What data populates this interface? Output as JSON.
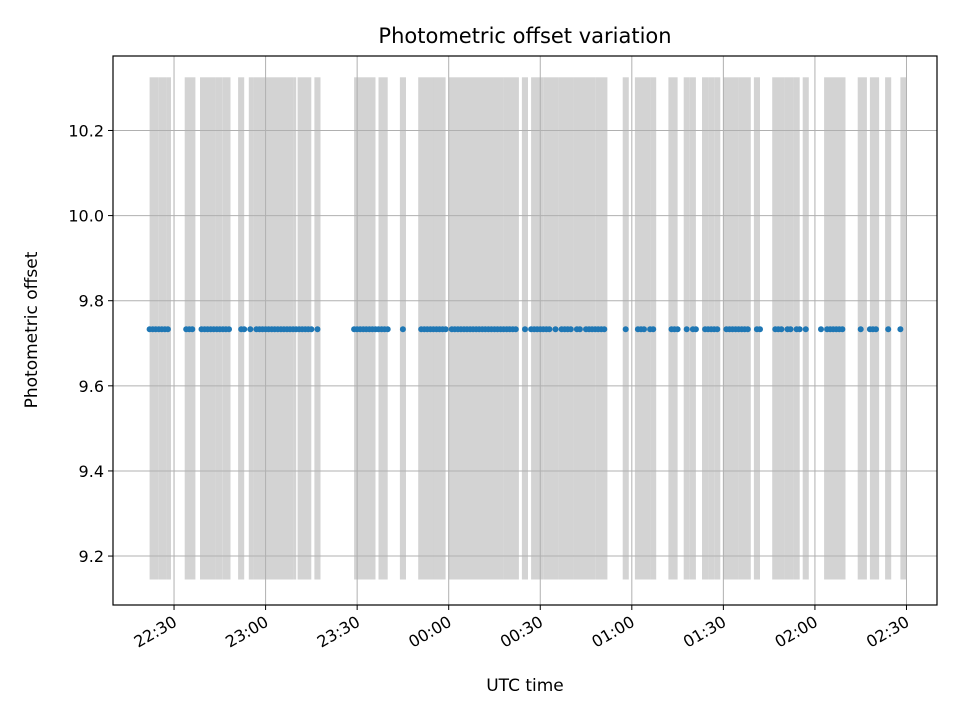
{
  "chart_data": {
    "type": "scatter",
    "title": "Photometric offset variation",
    "xlabel": "UTC time",
    "ylabel": "Photometric offset",
    "xlim": [
      "22:10",
      "02:40"
    ],
    "ylim": [
      9.085,
      10.375
    ],
    "grid": true,
    "x_ticks": [
      "22:30",
      "23:00",
      "23:30",
      "00:00",
      "00:30",
      "01:00",
      "01:30",
      "02:00",
      "02:30"
    ],
    "y_ticks": [
      "9.2",
      "9.4",
      "9.6",
      "9.8",
      "10.0",
      "10.2"
    ],
    "x_ticks_rotated": true,
    "marker_color": "#1f77b4",
    "band_color": "#d3d3d3",
    "bands": {
      "ymin": 9.145,
      "ymax": 10.325,
      "intervals": [
        [
          "22:22",
          "22:25"
        ],
        [
          "22:25",
          "22:27:30"
        ],
        [
          "22:27:30",
          "22:29"
        ],
        [
          "22:33:30",
          "22:37"
        ],
        [
          "22:38:30",
          "22:43:30"
        ],
        [
          "22:43:30",
          "22:46"
        ],
        [
          "22:46",
          "22:48:30"
        ],
        [
          "22:51",
          "22:53"
        ],
        [
          "22:54:30",
          "22:56"
        ],
        [
          "22:56",
          "23:09"
        ],
        [
          "23:09",
          "23:10"
        ],
        [
          "23:10.5",
          "23:15"
        ],
        [
          "23:16",
          "23:18"
        ],
        [
          "23:29",
          "23:36"
        ],
        [
          "23:37",
          "23:40"
        ],
        [
          "23:44",
          "23:46"
        ],
        [
          "23:50",
          "23:55"
        ],
        [
          "23:55",
          "23:57"
        ],
        [
          "23:57",
          "23:59"
        ],
        [
          "00:00",
          "00:05"
        ],
        [
          "00:05",
          "00:18"
        ],
        [
          "00:18",
          "00:23"
        ],
        [
          "00:24",
          "00:26"
        ],
        [
          "00:27",
          "00:31"
        ],
        [
          "00:31",
          "00:34"
        ],
        [
          "00:34",
          "00:36"
        ],
        [
          "00:36",
          "00:41"
        ],
        [
          "00:41",
          "00:44"
        ],
        [
          "00:44",
          "00:48"
        ],
        [
          "00:48",
          "00:52"
        ],
        [
          "00:57",
          "00:59"
        ],
        [
          "01:01",
          "01:03"
        ],
        [
          "01:03",
          "01:06"
        ],
        [
          "01:06",
          "01:08"
        ],
        [
          "01:12",
          "01:15"
        ],
        [
          "01:17",
          "01:19"
        ],
        [
          "01:19",
          "01:21"
        ],
        [
          "01:23",
          "01:25"
        ],
        [
          "01:25",
          "01:27"
        ],
        [
          "01:27",
          "01:29"
        ],
        [
          "01:30",
          "01:35"
        ],
        [
          "01:35",
          "01:39"
        ],
        [
          "01:40",
          "01:42"
        ],
        [
          "01:46",
          "01:50"
        ],
        [
          "01:50",
          "01:53"
        ],
        [
          "01:53",
          "01:55"
        ],
        [
          "01:56",
          "01:58"
        ],
        [
          "02:03",
          "02:10"
        ],
        [
          "02:14",
          "02:17"
        ],
        [
          "02:18",
          "02:21"
        ],
        [
          "02:23",
          "02:25"
        ],
        [
          "02:28",
          "02:30"
        ]
      ]
    },
    "series": [
      {
        "y": 9.733,
        "x": [
          "22:22",
          "22:23",
          "22:24",
          "22:25",
          "22:26",
          "22:27",
          "22:28",
          "22:34",
          "22:35",
          "22:36",
          "22:39",
          "22:40",
          "22:41",
          "22:42",
          "22:43",
          "22:44",
          "22:45",
          "22:46",
          "22:47",
          "22:48",
          "22:52",
          "22:53",
          "22:55",
          "22:57",
          "22:58",
          "22:59",
          "23:00",
          "23:01",
          "23:02",
          "23:03",
          "23:04",
          "23:05",
          "23:06",
          "23:07",
          "23:08",
          "23:09",
          "23:10",
          "23:11",
          "23:12",
          "23:13",
          "23:14",
          "23:15",
          "23:17",
          "23:29",
          "23:30",
          "23:31",
          "23:32",
          "23:33",
          "23:34",
          "23:35",
          "23:36",
          "23:37",
          "23:38",
          "23:39",
          "23:40",
          "23:45",
          "23:51",
          "23:52",
          "23:53",
          "23:54",
          "23:55",
          "23:56",
          "23:57",
          "23:58",
          "23:59",
          "00:01",
          "00:02",
          "00:03",
          "00:04",
          "00:05",
          "00:06",
          "00:07",
          "00:08",
          "00:09",
          "00:10",
          "00:11",
          "00:12",
          "00:13",
          "00:14",
          "00:15",
          "00:16",
          "00:17",
          "00:18",
          "00:19",
          "00:20",
          "00:21",
          "00:22",
          "00:25",
          "00:27",
          "00:28",
          "00:29",
          "00:30",
          "00:31",
          "00:32",
          "00:33",
          "00:35",
          "00:37",
          "00:38",
          "00:39",
          "00:40",
          "00:42",
          "00:43",
          "00:45",
          "00:46",
          "00:47",
          "00:48",
          "00:49",
          "00:50",
          "00:51",
          "00:58",
          "01:02",
          "01:03",
          "01:04",
          "01:06",
          "01:07",
          "01:13",
          "01:14",
          "01:15",
          "01:18",
          "01:20",
          "01:21",
          "01:24",
          "01:25",
          "01:26",
          "01:27",
          "01:28",
          "01:31",
          "01:32",
          "01:33",
          "01:34",
          "01:35",
          "01:36",
          "01:37",
          "01:38",
          "01:41",
          "01:42",
          "01:47",
          "01:48",
          "01:49",
          "01:51",
          "01:52",
          "01:54",
          "01:55",
          "01:57",
          "02:02",
          "02:04",
          "02:05",
          "02:06",
          "02:07",
          "02:08",
          "02:09",
          "02:15",
          "02:18",
          "02:19",
          "02:20",
          "02:24",
          "02:28"
        ]
      }
    ]
  }
}
